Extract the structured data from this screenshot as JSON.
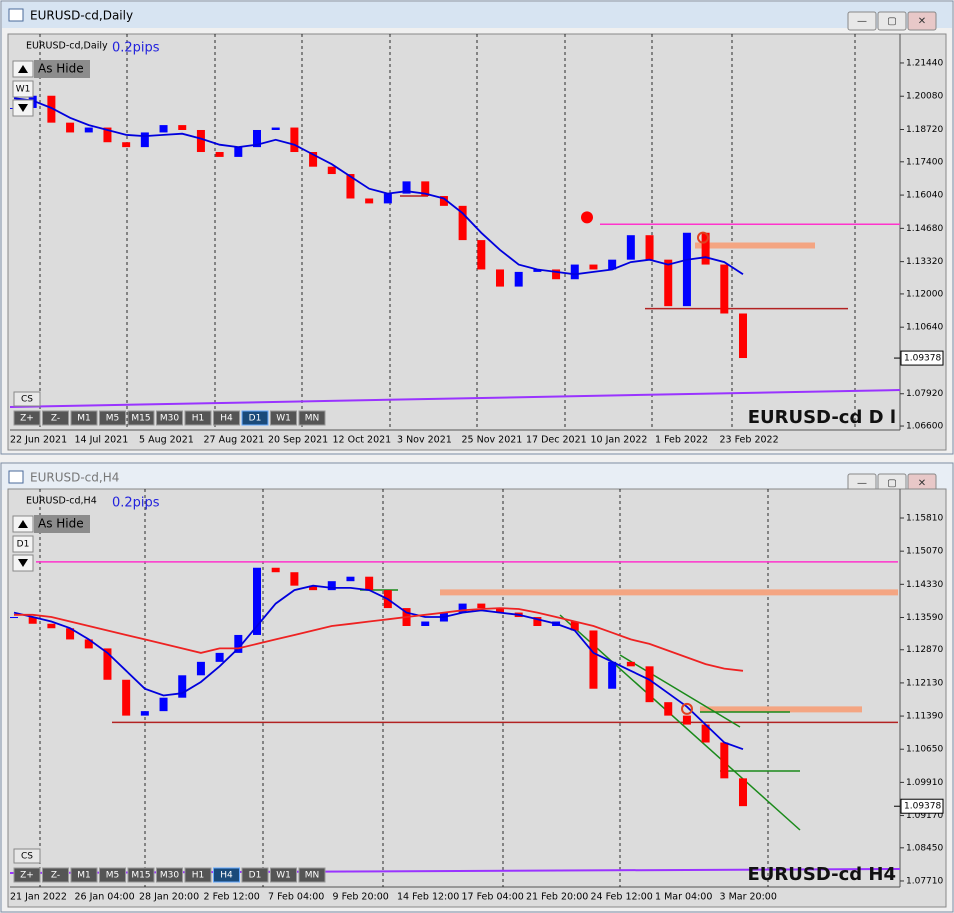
{
  "windows": [
    {
      "title": "EURUSD-cd,Daily",
      "symbol_label": "EURUSD-cd,Daily",
      "spread": "0.2pips",
      "hide_button": "As Hide",
      "period_button": "W1",
      "cs_button": "CS",
      "toolbar": [
        "Z+",
        "Z-",
        "M1",
        "M5",
        "M15",
        "M30",
        "H1",
        "H4",
        "D1",
        "W1",
        "MN"
      ],
      "active_period": "D1",
      "watermark": "EURUSD-cd D l",
      "price_label": {
        "value": 1.09378,
        "label": "1.09378"
      },
      "chart_data": {
        "type": "candlestick",
        "ylim": [
          1.0652,
          1.2246
        ],
        "yticks": [
          {
            "value": 1.2144,
            "label": "1.21440"
          },
          {
            "value": 1.2008,
            "label": "1.20080"
          },
          {
            "value": 1.1872,
            "label": "1.18720"
          },
          {
            "value": 1.174,
            "label": "1.17400"
          },
          {
            "value": 1.1604,
            "label": "1.16040"
          },
          {
            "value": 1.1468,
            "label": "1.14680"
          },
          {
            "value": 1.1332,
            "label": "1.13320"
          },
          {
            "value": 1.12,
            "label": "1.12000"
          },
          {
            "value": 1.1064,
            "label": "1.10640"
          },
          {
            "value": 1.0792,
            "label": "1.07920"
          },
          {
            "value": 1.066,
            "label": "1.06600"
          }
        ],
        "categories": [
          "22 Jun 2021",
          "14 Jul 2021",
          "5 Aug 2021",
          "27 Aug 2021",
          "20 Sep 2021",
          "12 Oct 2021",
          "3 Nov 2021",
          "25 Nov 2021",
          "17 Dec 2021",
          "10 Jan 2022",
          "1 Feb 2022",
          "23 Feb 2022"
        ],
        "closes": [
          1.196,
          1.201,
          1.19,
          1.186,
          1.188,
          1.182,
          1.18,
          1.186,
          1.189,
          1.187,
          1.178,
          1.176,
          1.18,
          1.187,
          1.188,
          1.178,
          1.172,
          1.169,
          1.159,
          1.157,
          1.161,
          1.166,
          1.16,
          1.156,
          1.142,
          1.13,
          1.123,
          1.129,
          1.13,
          1.126,
          1.132,
          1.13,
          1.134,
          1.144,
          1.134,
          1.115,
          1.145,
          1.132,
          1.112,
          1.0938
        ],
        "ma_blue": [
          1.2,
          1.199,
          1.196,
          1.192,
          1.189,
          1.187,
          1.185,
          1.1845,
          1.185,
          1.1855,
          1.1835,
          1.181,
          1.18,
          1.181,
          1.183,
          1.181,
          1.177,
          1.173,
          1.168,
          1.163,
          1.161,
          1.162,
          1.161,
          1.159,
          1.153,
          1.145,
          1.138,
          1.132,
          1.13,
          1.129,
          1.128,
          1.129,
          1.13,
          1.133,
          1.134,
          1.132,
          1.134,
          1.135,
          1.133,
          1.128
        ],
        "levels": [
          {
            "value": 1.1485,
            "color": "#ff33cc"
          },
          {
            "value": 1.1398,
            "color": "#f4a582"
          },
          {
            "value": 1.16,
            "color": "#b22222"
          },
          {
            "value": 1.114,
            "color": "#b22222"
          }
        ],
        "markers": [
          {
            "value": 1.1513,
            "color": "#ff0000"
          },
          {
            "value": 1.143,
            "color": "#e04020"
          }
        ]
      }
    },
    {
      "title": "EURUSD-cd,H4",
      "symbol_label": "EURUSD-cd,H4",
      "spread": "0.2pips",
      "hide_button": "As Hide",
      "period_button": "D1",
      "cs_button": "CS",
      "toolbar": [
        "Z+",
        "Z-",
        "M1",
        "M5",
        "M15",
        "M30",
        "H1",
        "H4",
        "D1",
        "W1",
        "MN"
      ],
      "active_period": "H4",
      "watermark": "EURUSD-cd H4",
      "price_label": {
        "value": 1.09378,
        "label": "1.09378"
      },
      "chart_data": {
        "type": "candlestick",
        "ylim": [
          1.0762,
          1.16368
        ],
        "yticks": [
          {
            "value": 1.1581,
            "label": "1.15810"
          },
          {
            "value": 1.1507,
            "label": "1.15070"
          },
          {
            "value": 1.1433,
            "label": "1.14330"
          },
          {
            "value": 1.1359,
            "label": "1.13590"
          },
          {
            "value": 1.1287,
            "label": "1.12870"
          },
          {
            "value": 1.1213,
            "label": "1.12130"
          },
          {
            "value": 1.1139,
            "label": "1.11390"
          },
          {
            "value": 1.1065,
            "label": "1.10650"
          },
          {
            "value": 1.0991,
            "label": "1.09910"
          },
          {
            "value": 1.0917,
            "label": "1.09170"
          },
          {
            "value": 1.0845,
            "label": "1.08450"
          },
          {
            "value": 1.0771,
            "label": "1.07710"
          }
        ],
        "categories": [
          "21 Jan 2022",
          "26 Jan 04:00",
          "28 Jan 20:00",
          "2 Feb 12:00",
          "7 Feb 04:00",
          "9 Feb 20:00",
          "14 Feb 12:00",
          "17 Feb 04:00",
          "21 Feb 20:00",
          "24 Feb 12:00",
          "1 Mar 04:00",
          "3 Mar 20:00"
        ],
        "closes": [
          1.136,
          1.1345,
          1.1335,
          1.131,
          1.129,
          1.122,
          1.114,
          1.115,
          1.118,
          1.123,
          1.126,
          1.128,
          1.132,
          1.147,
          1.146,
          1.143,
          1.142,
          1.144,
          1.145,
          1.142,
          1.138,
          1.134,
          1.135,
          1.137,
          1.139,
          1.138,
          1.137,
          1.136,
          1.134,
          1.135,
          1.133,
          1.12,
          1.126,
          1.125,
          1.117,
          1.114,
          1.112,
          1.108,
          1.1,
          1.0938
        ],
        "ma_blue": [
          1.137,
          1.136,
          1.135,
          1.1335,
          1.131,
          1.128,
          1.124,
          1.12,
          1.1185,
          1.119,
          1.1215,
          1.125,
          1.129,
          1.134,
          1.139,
          1.142,
          1.143,
          1.1425,
          1.1425,
          1.142,
          1.14,
          1.137,
          1.136,
          1.136,
          1.137,
          1.1375,
          1.137,
          1.1365,
          1.1355,
          1.1345,
          1.133,
          1.128,
          1.126,
          1.124,
          1.122,
          1.119,
          1.116,
          1.112,
          1.108,
          1.1065
        ],
        "ma_red": [
          1.1365,
          1.1365,
          1.136,
          1.135,
          1.134,
          1.133,
          1.132,
          1.131,
          1.13,
          1.129,
          1.128,
          1.129,
          1.129,
          1.13,
          1.131,
          1.132,
          1.133,
          1.134,
          1.1345,
          1.135,
          1.1355,
          1.136,
          1.1365,
          1.137,
          1.1375,
          1.1378,
          1.138,
          1.1378,
          1.137,
          1.136,
          1.135,
          1.134,
          1.1325,
          1.131,
          1.13,
          1.1285,
          1.127,
          1.1255,
          1.1245,
          1.124
        ],
        "levels": [
          {
            "value": 1.1483,
            "color": "#ff33cc"
          },
          {
            "value": 1.1415,
            "color": "#f4a582"
          },
          {
            "value": 1.1125,
            "color": "#b22222"
          },
          {
            "value": 1.1154,
            "color": "#f4a582"
          }
        ],
        "markers": [
          {
            "value": 1.1155,
            "color": "#e04020"
          }
        ]
      }
    }
  ]
}
